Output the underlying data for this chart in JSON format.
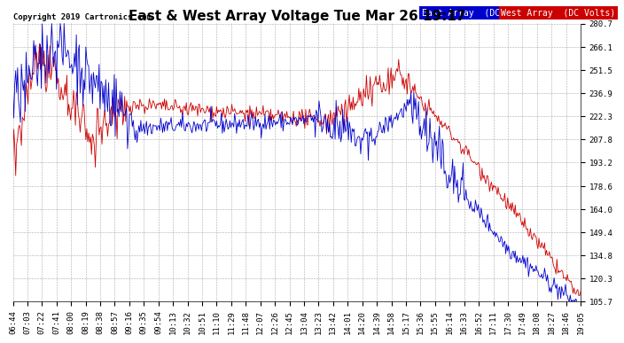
{
  "title": "East & West Array Voltage Tue Mar 26 19:17",
  "copyright": "Copyright 2019 Cartronics.com",
  "legend_east": "East Array  (DC Volts)",
  "legend_west": "West Array  (DC Volts)",
  "east_color": "#0000cc",
  "west_color": "#cc0000",
  "east_legend_bg": "#0000cc",
  "west_legend_bg": "#cc0000",
  "y_min": 105.7,
  "y_max": 280.7,
  "y_ticks": [
    280.7,
    266.1,
    251.5,
    236.9,
    222.3,
    207.8,
    193.2,
    178.6,
    164.0,
    149.4,
    134.8,
    120.3,
    105.7
  ],
  "x_labels": [
    "06:44",
    "07:03",
    "07:22",
    "07:41",
    "08:00",
    "08:19",
    "08:38",
    "08:57",
    "09:16",
    "09:35",
    "09:54",
    "10:13",
    "10:32",
    "10:51",
    "11:10",
    "11:29",
    "11:48",
    "12:07",
    "12:26",
    "12:45",
    "13:04",
    "13:23",
    "13:42",
    "14:01",
    "14:20",
    "14:39",
    "14:58",
    "15:17",
    "15:36",
    "15:55",
    "16:14",
    "16:33",
    "16:52",
    "17:11",
    "17:30",
    "17:49",
    "18:08",
    "18:27",
    "18:46",
    "19:05"
  ],
  "bg_color": "#ffffff",
  "plot_bg": "#ffffff",
  "grid_color": "#aaaaaa",
  "title_fontsize": 11,
  "tick_fontsize": 6.5,
  "legend_fontsize": 7,
  "copyright_fontsize": 6.5
}
